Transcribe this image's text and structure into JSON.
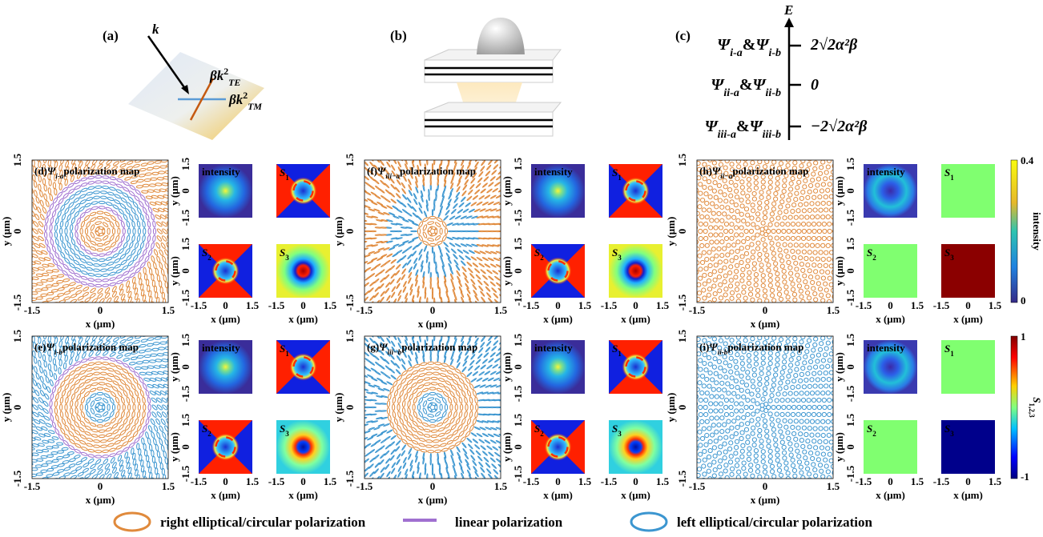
{
  "panel_a": {
    "label": "(a)",
    "k": "k",
    "beta_k": "βk",
    "power": "2",
    "te": "TE",
    "tm": "TM"
  },
  "panel_b": {
    "label": "(b)"
  },
  "panel_c": {
    "label": "(c)",
    "axis": "E",
    "psi": "Ψ",
    "and": "&",
    "levels": [
      {
        "a": "i-a",
        "b": "i-b",
        "energy": "2√2α²β"
      },
      {
        "a": "ii-a",
        "b": "ii-b",
        "energy": "0"
      },
      {
        "a": "iii-a",
        "b": "iii-b",
        "energy": "−2√2α²β"
      }
    ]
  },
  "maps": {
    "psi": "Ψ",
    "title": "polarization map",
    "ticks": [
      "-1.5",
      "0",
      "1.5"
    ],
    "xlabel": "x (μm)",
    "ylabel": "y (μm)",
    "intensity": "intensity",
    "s": "S",
    "s_subs": [
      "1",
      "2",
      "3"
    ],
    "panels": [
      {
        "label": "(d)",
        "state": "i-a"
      },
      {
        "label": "(f)",
        "state": "iii−a"
      },
      {
        "label": "(h)",
        "state": "ii−a"
      },
      {
        "label": "(e)",
        "state": "i-b"
      },
      {
        "label": "(g)",
        "state": "iii−b"
      },
      {
        "label": "(i)",
        "state": "ii-b"
      }
    ]
  },
  "colorbars": [
    {
      "top": "0.4",
      "bottom": "0",
      "label": "intensity"
    },
    {
      "top": "1",
      "bottom": "-1",
      "label": "S",
      "label_sub": "1,2,3"
    }
  ],
  "legend": [
    "right elliptical/circular polarization",
    "linear polarization",
    "left elliptical/circular polarization"
  ]
}
